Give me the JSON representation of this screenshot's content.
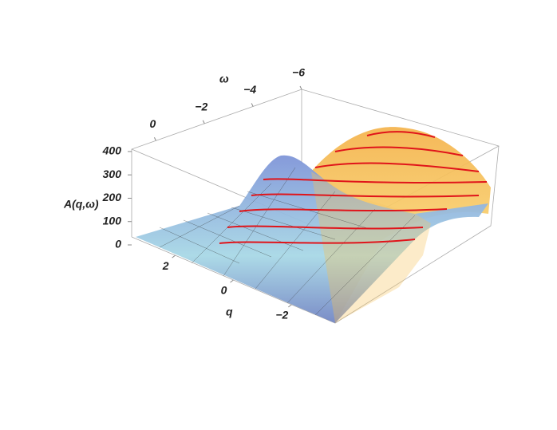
{
  "chart_data": {
    "type": "surface3d",
    "x_label": "q",
    "y_label": "ω",
    "z_label": "A(q,ω)",
    "xlim": [
      3.5,
      -3.5
    ],
    "xticks": [
      2,
      0,
      {
        "value": -2,
        "label": "−2"
      }
    ],
    "ylim": [
      1,
      -6
    ],
    "yticks": [
      0,
      {
        "value": -2,
        "label": "−2"
      },
      {
        "value": -4,
        "label": "−4"
      },
      {
        "value": -6,
        "label": "−6"
      }
    ],
    "zlim": [
      0,
      410
    ],
    "zticks": [
      0,
      100,
      200,
      300,
      400
    ]
  }
}
